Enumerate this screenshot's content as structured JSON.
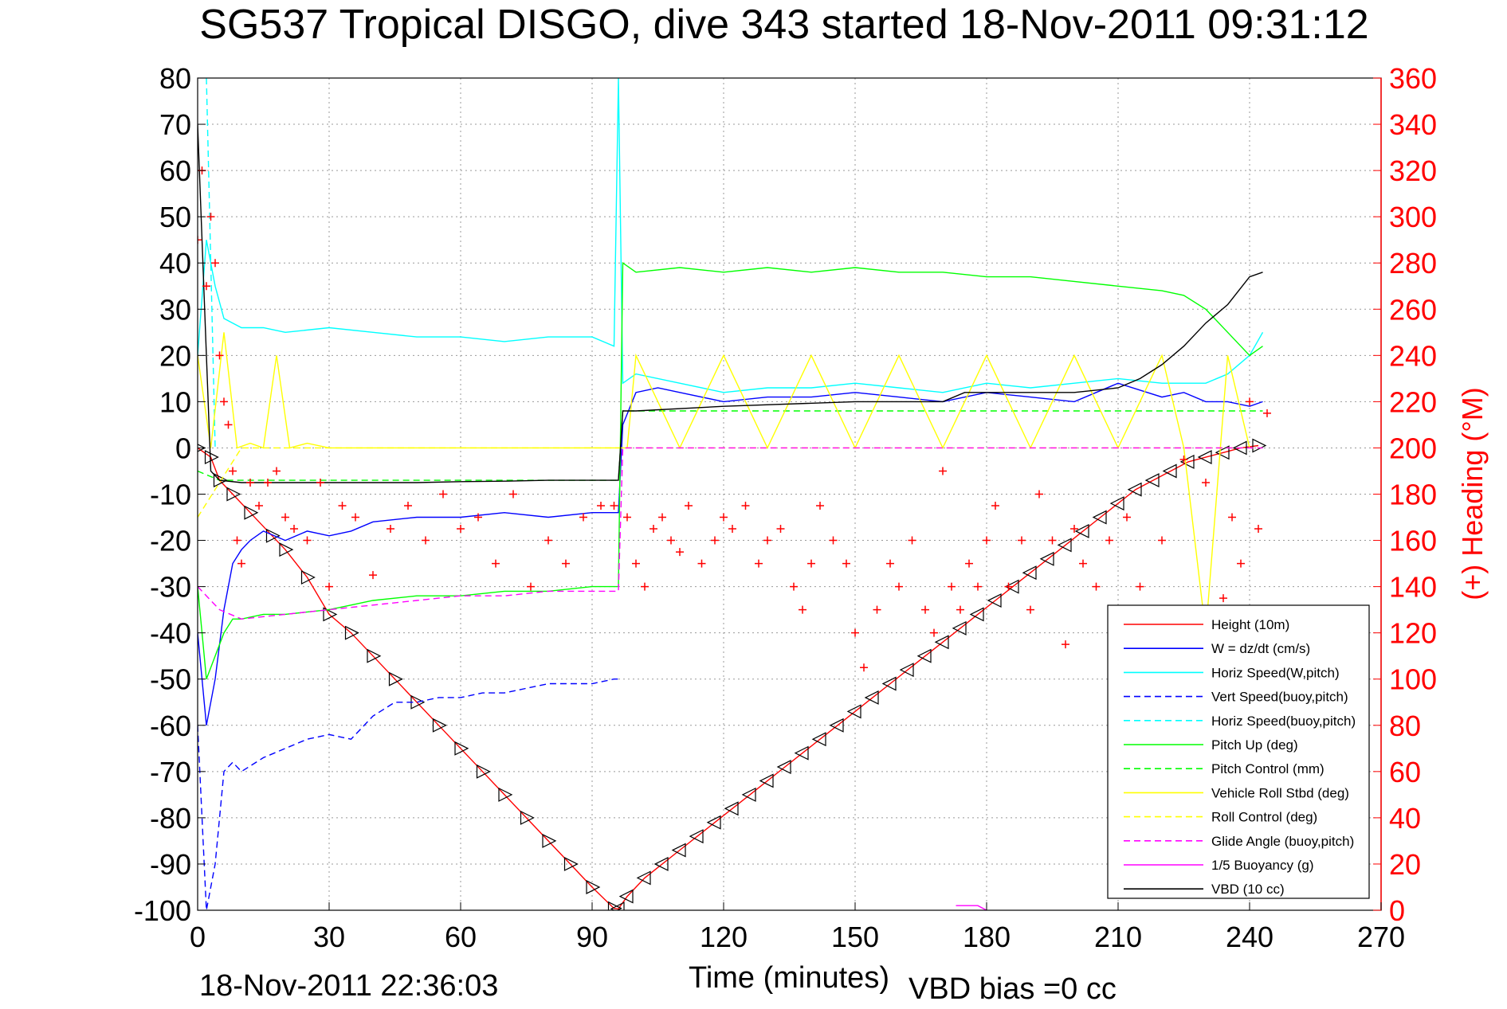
{
  "chart_data": {
    "type": "line",
    "title": "SG537 Tropical DISGO, dive 343 started 18-Nov-2011 09:31:12",
    "xlabel": "Time (minutes)",
    "ylabel": "",
    "ylabel_right": "(+) Heading (°M)",
    "xlim": [
      0,
      270
    ],
    "ylim": [
      -100,
      80
    ],
    "ylim_right": [
      0,
      360
    ],
    "xticks": [
      0,
      30,
      60,
      90,
      120,
      150,
      180,
      210,
      240,
      270
    ],
    "yticks": [
      80,
      70,
      60,
      50,
      40,
      30,
      20,
      10,
      0,
      -10,
      -20,
      -30,
      -40,
      -50,
      -60,
      -70,
      -80,
      -90,
      -100
    ],
    "yticks_right": [
      360,
      340,
      320,
      300,
      280,
      260,
      240,
      220,
      200,
      180,
      160,
      140,
      120,
      100,
      80,
      60,
      40,
      20,
      0
    ],
    "grid": true,
    "legend_position": "bottom-right",
    "footer_left": "18-Nov-2011 22:36:03",
    "footer_right": "VBD bias =0 cc",
    "colors": {
      "height": "#ff0000",
      "w": "#0000ff",
      "horiz_speed": "#00ffff",
      "vert_speed_buoy": "#0000ff",
      "horiz_speed_buoy": "#00ffff",
      "pitch_up": "#00ff00",
      "pitch_control": "#00ff00",
      "roll": "#ffff00",
      "roll_control": "#ffff00",
      "glide_angle": "#ff00ff",
      "buoyancy": "#ff00ff",
      "vbd": "#000000",
      "heading": "#ff0000"
    },
    "series": [
      {
        "name": "Height (10m)",
        "color": "#ff0000",
        "dash": "solid",
        "markers": "triangle",
        "x": [
          0,
          3,
          5,
          8,
          12,
          17,
          20,
          25,
          30,
          35,
          40,
          45,
          50,
          55,
          60,
          65,
          70,
          75,
          80,
          85,
          90,
          95,
          96,
          98,
          102,
          106,
          110,
          114,
          118,
          122,
          126,
          130,
          134,
          138,
          142,
          146,
          150,
          154,
          158,
          162,
          166,
          170,
          174,
          178,
          182,
          186,
          190,
          194,
          198,
          202,
          206,
          210,
          214,
          218,
          222,
          226,
          230,
          234,
          238,
          242
        ],
        "y": [
          0,
          -2,
          -7,
          -10,
          -14,
          -19,
          -22,
          -28,
          -36,
          -40,
          -45,
          -50,
          -55,
          -60,
          -65,
          -70,
          -75,
          -80,
          -85,
          -90,
          -95,
          -99.6,
          -99.7,
          -97,
          -93,
          -90,
          -87,
          -84,
          -81,
          -78,
          -75,
          -72,
          -69,
          -66,
          -63,
          -60,
          -57,
          -54,
          -51,
          -48,
          -45,
          -42,
          -39,
          -36,
          -33,
          -30,
          -27,
          -24,
          -21,
          -18,
          -15,
          -12,
          -9,
          -7,
          -5,
          -3,
          -2,
          -1,
          0,
          0.5
        ]
      },
      {
        "name": "W = dz/dt (cm/s)",
        "color": "#0000ff",
        "dash": "solid",
        "x": [
          0,
          2,
          4,
          6,
          8,
          10,
          12,
          15,
          20,
          25,
          30,
          35,
          40,
          50,
          60,
          70,
          80,
          90,
          95,
          96,
          97,
          100,
          105,
          110,
          120,
          130,
          140,
          150,
          160,
          170,
          180,
          190,
          200,
          210,
          220,
          225,
          230,
          235,
          240,
          243
        ],
        "y": [
          -40,
          -60,
          -50,
          -35,
          -25,
          -22,
          -20,
          -18,
          -20,
          -18,
          -19,
          -18,
          -16,
          -15,
          -15,
          -14,
          -15,
          -14,
          -14,
          -14,
          5,
          12,
          13,
          12,
          10,
          11,
          11,
          12,
          11,
          10,
          12,
          11,
          10,
          14,
          11,
          12,
          10,
          10,
          9,
          10
        ]
      },
      {
        "name": "Horiz Speed(W,pitch)",
        "color": "#00ffff",
        "dash": "solid",
        "x": [
          0,
          2,
          4,
          6,
          8,
          10,
          15,
          20,
          30,
          40,
          50,
          60,
          70,
          80,
          90,
          95,
          96,
          97,
          100,
          110,
          120,
          130,
          140,
          150,
          160,
          170,
          180,
          190,
          200,
          210,
          220,
          230,
          235,
          240,
          243
        ],
        "y": [
          20,
          45,
          35,
          28,
          27,
          26,
          26,
          25,
          26,
          25,
          24,
          24,
          23,
          24,
          24,
          22,
          80,
          14,
          16,
          14,
          12,
          13,
          13,
          14,
          13,
          12,
          14,
          13,
          14,
          15,
          14,
          14,
          16,
          20,
          25
        ]
      },
      {
        "name": "Vert Speed(buoy,pitch)",
        "color": "#0000ff",
        "dash": "dashed",
        "x": [
          0,
          2,
          4,
          6,
          8,
          10,
          15,
          20,
          25,
          30,
          35,
          40,
          45,
          50,
          55,
          60,
          65,
          70,
          75,
          80,
          85,
          90,
          95,
          96
        ],
        "y": [
          -60,
          -100,
          -90,
          -70,
          -68,
          -70,
          -67,
          -65,
          -63,
          -62,
          -63,
          -58,
          -55,
          -55,
          -54,
          -54,
          -53,
          -53,
          -52,
          -51,
          -51,
          -51,
          -50,
          -50
        ]
      },
      {
        "name": "Horiz Speed(buoy,pitch)",
        "color": "#00ffff",
        "dash": "dashed",
        "x": [
          2,
          3,
          4
        ],
        "y": [
          80,
          40,
          0
        ]
      },
      {
        "name": "Pitch Up (deg)",
        "color": "#00ff00",
        "dash": "solid",
        "x": [
          0,
          2,
          4,
          6,
          8,
          10,
          15,
          20,
          30,
          40,
          50,
          60,
          70,
          80,
          90,
          95,
          96,
          97,
          100,
          110,
          120,
          130,
          140,
          150,
          160,
          170,
          180,
          190,
          200,
          210,
          220,
          225,
          230,
          235,
          240,
          243
        ],
        "y": [
          -30,
          -50,
          -45,
          -40,
          -37,
          -37,
          -36,
          -36,
          -35,
          -33,
          -32,
          -32,
          -31,
          -31,
          -30,
          -30,
          -30,
          40,
          38,
          39,
          38,
          39,
          38,
          39,
          38,
          38,
          37,
          37,
          36,
          35,
          34,
          33,
          30,
          25,
          20,
          22
        ]
      },
      {
        "name": "Pitch Control (mm)",
        "color": "#00ff00",
        "dash": "dashed",
        "x": [
          0,
          5,
          10,
          20,
          30,
          40,
          50,
          60,
          70,
          80,
          90,
          96,
          97,
          110,
          130,
          150,
          170,
          190,
          210,
          230,
          243
        ],
        "y": [
          -5,
          -7,
          -7,
          -7,
          -7,
          -7,
          -7,
          -7,
          -7,
          -7,
          -7,
          -7,
          8,
          8,
          8,
          8,
          8,
          8,
          8,
          8,
          8
        ]
      },
      {
        "name": "Vehicle Roll Stbd (deg)",
        "color": "#ffff00",
        "dash": "solid",
        "x": [
          0,
          3,
          6,
          9,
          12,
          15,
          18,
          21,
          25,
          30,
          35,
          40,
          45,
          50,
          55,
          60,
          65,
          70,
          75,
          80,
          85,
          90,
          95,
          96,
          98,
          100,
          110,
          120,
          130,
          140,
          150,
          160,
          170,
          180,
          190,
          200,
          210,
          220,
          225,
          230,
          235,
          240
        ],
        "y": [
          20,
          0,
          25,
          0,
          1,
          0,
          20,
          0,
          1,
          0,
          0,
          0,
          0,
          0,
          0,
          0,
          0,
          0,
          0,
          0,
          0,
          0,
          0,
          0,
          0,
          20,
          0,
          20,
          0,
          20,
          0,
          20,
          0,
          20,
          0,
          20,
          0,
          20,
          0,
          -40,
          20,
          0
        ]
      },
      {
        "name": "Roll Control (deg)",
        "color": "#ffff00",
        "dash": "dashed",
        "x": [
          0,
          10,
          30,
          60,
          90,
          96,
          120,
          150,
          180,
          210,
          240,
          243
        ],
        "y": [
          -15,
          0,
          0,
          0,
          0,
          0,
          0,
          0,
          0,
          0,
          0,
          0
        ]
      },
      {
        "name": "Glide Angle (buoy,pitch)",
        "color": "#ff00ff",
        "dash": "dashed",
        "x": [
          0,
          5,
          10,
          20,
          30,
          40,
          50,
          60,
          70,
          80,
          90,
          96,
          97,
          120,
          150,
          180,
          210,
          240,
          243
        ],
        "y": [
          -30,
          -35,
          -37,
          -36,
          -35,
          -34,
          -33,
          -32,
          -32,
          -31,
          -31,
          -31,
          0,
          0,
          0,
          0,
          0,
          0,
          0
        ]
      },
      {
        "name": "1/5 Buoyancy (g)",
        "color": "#ff00ff",
        "dash": "solid",
        "x": [
          173,
          178,
          180
        ],
        "y": [
          -99,
          -99,
          -100
        ]
      },
      {
        "name": "VBD (10 cc)",
        "color": "#000000",
        "dash": "solid",
        "x": [
          0,
          2,
          3,
          5,
          10,
          20,
          30,
          40,
          50,
          60,
          70,
          80,
          90,
          96,
          97,
          100,
          120,
          150,
          170,
          175,
          180,
          190,
          200,
          210,
          215,
          220,
          225,
          230,
          235,
          240,
          243
        ],
        "y": [
          70,
          20,
          -5,
          -7,
          -7.5,
          -7.5,
          -7.5,
          -7.5,
          -7.5,
          -7.3,
          -7.2,
          -7,
          -7,
          -7,
          8,
          8,
          9,
          10,
          10,
          12,
          12,
          12,
          12,
          13,
          15,
          18,
          22,
          27,
          31,
          37,
          38
        ]
      },
      {
        "name": "Heading",
        "color": "#ff0000",
        "dash": "none",
        "markers": "plus",
        "axis": "right",
        "x": [
          0,
          1,
          2,
          3,
          4,
          5,
          6,
          7,
          8,
          9,
          10,
          12,
          14,
          16,
          18,
          20,
          22,
          25,
          28,
          30,
          33,
          36,
          40,
          44,
          48,
          52,
          56,
          60,
          64,
          68,
          72,
          76,
          80,
          84,
          88,
          92,
          95,
          98,
          100,
          102,
          104,
          106,
          108,
          110,
          112,
          115,
          118,
          120,
          122,
          125,
          128,
          130,
          133,
          136,
          138,
          140,
          142,
          145,
          148,
          150,
          152,
          155,
          158,
          160,
          163,
          166,
          168,
          170,
          172,
          174,
          176,
          178,
          180,
          182,
          185,
          188,
          190,
          192,
          195,
          198,
          200,
          202,
          205,
          208,
          210,
          212,
          215,
          218,
          220,
          222,
          225,
          228,
          230,
          232,
          234,
          236,
          238,
          240,
          242,
          244
        ],
        "y": [
          290,
          320,
          270,
          300,
          280,
          240,
          220,
          210,
          190,
          160,
          150,
          185,
          175,
          185,
          190,
          170,
          165,
          160,
          185,
          140,
          175,
          170,
          145,
          165,
          175,
          160,
          180,
          165,
          170,
          150,
          180,
          140,
          160,
          150,
          170,
          175,
          175,
          170,
          150,
          140,
          165,
          170,
          160,
          155,
          175,
          150,
          160,
          170,
          165,
          175,
          150,
          160,
          165,
          140,
          130,
          150,
          175,
          160,
          150,
          120,
          105,
          130,
          150,
          140,
          160,
          130,
          120,
          190,
          140,
          130,
          150,
          140,
          160,
          175,
          140,
          160,
          130,
          180,
          160,
          115,
          165,
          150,
          140,
          160,
          120,
          170,
          140,
          120,
          160,
          130,
          195,
          110,
          185,
          120,
          135,
          170,
          150,
          220,
          165,
          215
        ]
      }
    ]
  }
}
